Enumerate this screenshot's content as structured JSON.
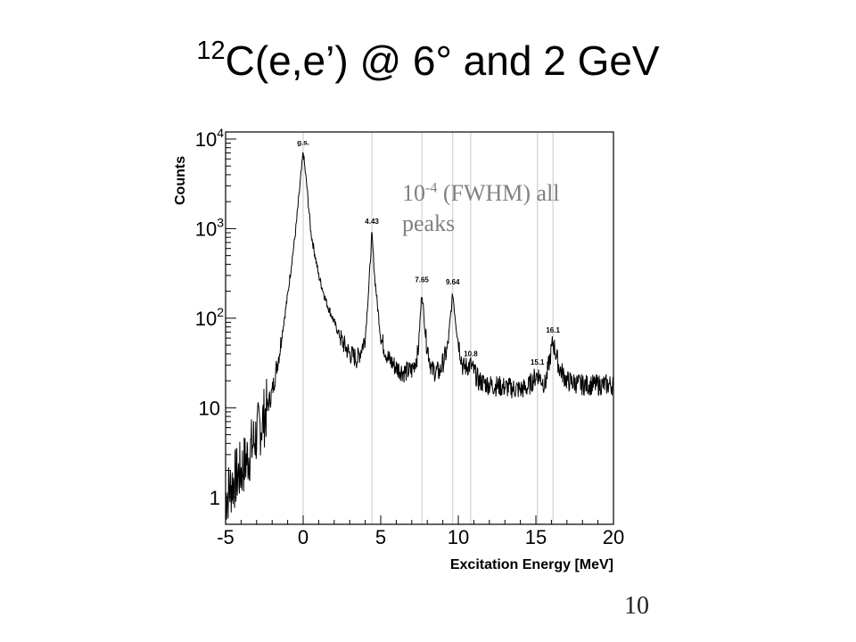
{
  "slide": {
    "title_sup": "12",
    "title_main": "C(e,e’) @ 6° and 2 GeV",
    "annotation_base": "10",
    "annotation_exp": "-4",
    "annotation_rest": " (FWHM) all peaks",
    "page_number": "10"
  },
  "chart_data": {
    "type": "line",
    "title": "",
    "xlabel": "Excitation Energy [MeV]",
    "ylabel": "Counts",
    "xlim": [
      -5,
      20
    ],
    "ylim": [
      0.5,
      12000
    ],
    "yscale": "log",
    "x_ticks": [
      -5,
      0,
      5,
      10,
      15,
      20
    ],
    "x_tick_labels": [
      "-5",
      "0",
      "5",
      "10",
      "15",
      "20"
    ],
    "y_tick_labels": [
      {
        "value": 1,
        "base": "1",
        "exp": ""
      },
      {
        "value": 10,
        "base": "10",
        "exp": ""
      },
      {
        "value": 100,
        "base": "10",
        "exp": "2"
      },
      {
        "value": 1000,
        "base": "10",
        "exp": "3"
      },
      {
        "value": 10000,
        "base": "10",
        "exp": "4"
      }
    ],
    "peaks": [
      {
        "label": "g.s.",
        "x": 0.0
      },
      {
        "label": "4.43",
        "x": 4.43
      },
      {
        "label": "7.65",
        "x": 7.65
      },
      {
        "label": "9.64",
        "x": 9.64
      },
      {
        "label": "10.8",
        "x": 10.8
      },
      {
        "label": "15.1",
        "x": 15.1
      },
      {
        "label": "16.1",
        "x": 16.1
      }
    ],
    "series": [
      {
        "x": [
          -5,
          -4.5,
          -4,
          -3.5,
          -3,
          -2.5,
          -2,
          -1.5,
          -1,
          -0.5,
          -0.25,
          0,
          0.25,
          0.5,
          1,
          1.5,
          2,
          2.5,
          3,
          3.5,
          4,
          4.25,
          4.43,
          4.6,
          5,
          5.5,
          6,
          6.5,
          7,
          7.4,
          7.65,
          7.9,
          8.3,
          8.8,
          9.3,
          9.64,
          9.9,
          10.3,
          10.8,
          11.3,
          12,
          13,
          14,
          14.5,
          15.1,
          15.6,
          16.1,
          16.5,
          17,
          18,
          19,
          20
        ],
        "y": [
          1,
          1.5,
          2,
          3,
          5,
          8,
          15,
          45,
          180,
          900,
          2500,
          7200,
          2800,
          900,
          300,
          150,
          90,
          55,
          40,
          35,
          60,
          250,
          900,
          300,
          60,
          35,
          28,
          25,
          26,
          40,
          200,
          60,
          26,
          25,
          45,
          190,
          70,
          28,
          30,
          20,
          18,
          17,
          16,
          17,
          24,
          18,
          55,
          28,
          20,
          18,
          18,
          18
        ]
      }
    ],
    "grid": "vertical lines at peak positions",
    "colors": {
      "line": "#000000",
      "gridline": "#c8c8c8",
      "annotation": "#808080"
    }
  }
}
